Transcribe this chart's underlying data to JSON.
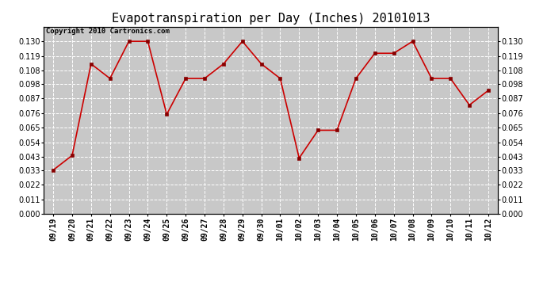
{
  "title": "Evapotranspiration per Day (Inches) 20101013",
  "copyright_text": "Copyright 2010 Cartronics.com",
  "labels": [
    "09/19",
    "09/20",
    "09/21",
    "09/22",
    "09/23",
    "09/24",
    "09/25",
    "09/26",
    "09/27",
    "09/28",
    "09/29",
    "09/30",
    "10/01",
    "10/02",
    "10/03",
    "10/04",
    "10/05",
    "10/06",
    "10/07",
    "10/08",
    "10/09",
    "10/10",
    "10/11",
    "10/12"
  ],
  "values": [
    0.033,
    0.044,
    0.113,
    0.102,
    0.13,
    0.13,
    0.075,
    0.102,
    0.102,
    0.113,
    0.13,
    0.113,
    0.102,
    0.042,
    0.063,
    0.063,
    0.102,
    0.121,
    0.121,
    0.13,
    0.102,
    0.102,
    0.082,
    0.093
  ],
  "line_color": "#cc0000",
  "marker": "s",
  "marker_size": 3,
  "marker_color": "#880000",
  "bg_color": "#ffffff",
  "plot_bg_color": "#c8c8c8",
  "grid_color": "#ffffff",
  "ylim": [
    0.0,
    0.141
  ],
  "yticks": [
    0.0,
    0.011,
    0.022,
    0.033,
    0.043,
    0.054,
    0.065,
    0.076,
    0.087,
    0.098,
    0.108,
    0.119,
    0.13
  ],
  "title_fontsize": 11,
  "tick_fontsize": 7,
  "copyright_fontsize": 6.5
}
